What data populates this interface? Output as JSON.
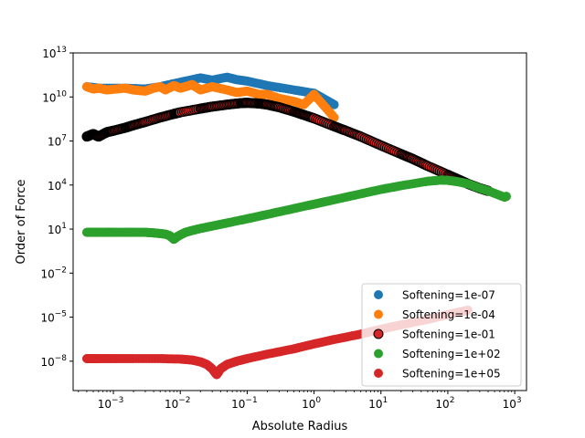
{
  "chart_data": {
    "type": "scatter",
    "title": "",
    "xlabel": "Absolute Radius",
    "ylabel": "Order of Force",
    "xscale": "log",
    "yscale": "log",
    "xlim": [
      0.00025,
      1500
    ],
    "ylim": [
      1e-10,
      10000000000000.0
    ],
    "x_ticks": [
      {
        "value": 0.001,
        "base": "10",
        "exp": "−3"
      },
      {
        "value": 0.01,
        "base": "10",
        "exp": "−2"
      },
      {
        "value": 0.1,
        "base": "10",
        "exp": "−1"
      },
      {
        "value": 1,
        "base": "10",
        "exp": "0"
      },
      {
        "value": 10,
        "base": "10",
        "exp": "1"
      },
      {
        "value": 100,
        "base": "10",
        "exp": "2"
      },
      {
        "value": 1000,
        "base": "10",
        "exp": "3"
      }
    ],
    "y_ticks": [
      {
        "value": 1e-08,
        "base": "10",
        "exp": "−8"
      },
      {
        "value": 1e-05,
        "base": "10",
        "exp": "−5"
      },
      {
        "value": 0.01,
        "base": "10",
        "exp": "−2"
      },
      {
        "value": 10,
        "base": "10",
        "exp": "1"
      },
      {
        "value": 10000,
        "base": "10",
        "exp": "4"
      },
      {
        "value": 10000000.0,
        "base": "10",
        "exp": "7"
      },
      {
        "value": 10000000000.0,
        "base": "10",
        "exp": "10"
      },
      {
        "value": 10000000000000.0,
        "base": "10",
        "exp": "13"
      }
    ],
    "grid": false,
    "legend_position": "lower-right",
    "series": [
      {
        "name": "Softening=1e-07",
        "color": "#1f77b4",
        "edgecolor": "",
        "points": [
          [
            0.0004,
            50000000000.0
          ],
          [
            0.0006,
            40000000000.0
          ],
          [
            0.0015,
            40000000000.0
          ],
          [
            0.003,
            35000000000.0
          ],
          [
            0.005,
            50000000000.0
          ],
          [
            0.008,
            80000000000.0
          ],
          [
            0.012,
            120000000000.0
          ],
          [
            0.02,
            200000000000.0
          ],
          [
            0.03,
            140000000000.0
          ],
          [
            0.05,
            220000000000.0
          ],
          [
            0.07,
            150000000000.0
          ],
          [
            0.1,
            120000000000.0
          ],
          [
            0.2,
            60000000000.0
          ],
          [
            0.5,
            30000000000.0
          ],
          [
            1,
            18000000000.0
          ],
          [
            2,
            3000000000.0
          ]
        ]
      },
      {
        "name": "Softening=1e-04",
        "color": "#ff7f0e",
        "edgecolor": "",
        "points": [
          [
            0.0004,
            50000000000.0
          ],
          [
            0.0005,
            35000000000.0
          ],
          [
            0.0006,
            40000000000.0
          ],
          [
            0.0008,
            30000000000.0
          ],
          [
            0.0015,
            40000000000.0
          ],
          [
            0.002,
            30000000000.0
          ],
          [
            0.003,
            25000000000.0
          ],
          [
            0.004,
            40000000000.0
          ],
          [
            0.005,
            50000000000.0
          ],
          [
            0.006,
            30000000000.0
          ],
          [
            0.008,
            60000000000.0
          ],
          [
            0.01,
            40000000000.0
          ],
          [
            0.012,
            50000000000.0
          ],
          [
            0.015,
            70000000000.0
          ],
          [
            0.02,
            30000000000.0
          ],
          [
            0.03,
            50000000000.0
          ],
          [
            0.05,
            30000000000.0
          ],
          [
            0.07,
            20000000000.0
          ],
          [
            0.1,
            25000000000.0
          ],
          [
            0.15,
            15000000000.0
          ],
          [
            0.2,
            15000000000.0
          ],
          [
            0.3,
            8000000000.0
          ],
          [
            0.5,
            5000000000.0
          ],
          [
            0.7,
            3000000000.0
          ],
          [
            1,
            15000000000.0
          ],
          [
            2,
            400000000.0
          ]
        ]
      },
      {
        "name": "Softening=1e-01",
        "color": "#d62728",
        "edgecolor": "#000000",
        "points": [
          [
            0.0004,
            20000000.0
          ],
          [
            0.0005,
            30000000.0
          ],
          [
            0.0006,
            20000000.0
          ],
          [
            0.0008,
            40000000.0
          ],
          [
            0.001,
            50000000.0
          ],
          [
            0.0015,
            80000000.0
          ],
          [
            0.002,
            120000000.0
          ],
          [
            0.003,
            200000000.0
          ],
          [
            0.005,
            400000000.0
          ],
          [
            0.008,
            700000000.0
          ],
          [
            0.01,
            900000000.0
          ],
          [
            0.02,
            1600000000.0
          ],
          [
            0.03,
            2200000000.0
          ],
          [
            0.05,
            3000000000.0
          ],
          [
            0.08,
            3800000000.0
          ],
          [
            0.1,
            4000000000.0
          ],
          [
            0.15,
            3600000000.0
          ],
          [
            0.2,
            3000000000.0
          ],
          [
            0.3,
            2000000000.0
          ],
          [
            0.5,
            1000000000.0
          ],
          [
            0.7,
            600000000.0
          ],
          [
            1,
            350000000.0
          ],
          [
            2,
            100000000.0
          ],
          [
            3,
            50000000.0
          ],
          [
            5,
            20000000.0
          ],
          [
            10,
            5000000.0
          ],
          [
            20,
            1300000.0
          ],
          [
            30,
            600000.0
          ],
          [
            50,
            200000.0
          ],
          [
            100,
            50000.0
          ],
          [
            150,
            22000.0
          ],
          [
            200,
            12000.0
          ],
          [
            300,
            6000
          ],
          [
            400,
            4000
          ]
        ]
      },
      {
        "name": "Softening=1e+02",
        "color": "#2ca02c",
        "edgecolor": "",
        "points": [
          [
            0.0004,
            6
          ],
          [
            0.0005,
            6
          ],
          [
            0.0006,
            6
          ],
          [
            0.0008,
            6
          ],
          [
            0.001,
            6
          ],
          [
            0.0015,
            6
          ],
          [
            0.002,
            6
          ],
          [
            0.003,
            6
          ],
          [
            0.004,
            5.5
          ],
          [
            0.005,
            5
          ],
          [
            0.006,
            4.5
          ],
          [
            0.007,
            3.5
          ],
          [
            0.008,
            2
          ],
          [
            0.009,
            3
          ],
          [
            0.01,
            4
          ],
          [
            0.012,
            6
          ],
          [
            0.015,
            8
          ],
          [
            0.02,
            11
          ],
          [
            0.03,
            16
          ],
          [
            0.05,
            26
          ],
          [
            0.1,
            50
          ],
          [
            0.2,
            100
          ],
          [
            0.5,
            250
          ],
          [
            1,
            500
          ],
          [
            2,
            1000
          ],
          [
            5,
            2500
          ],
          [
            10,
            5000
          ],
          [
            20,
            9000
          ],
          [
            50,
            18000.0
          ],
          [
            80,
            22000.0
          ],
          [
            100,
            21000.0
          ],
          [
            150,
            16000.0
          ],
          [
            200,
            12000.0
          ],
          [
            300,
            6000
          ],
          [
            400,
            4000
          ],
          [
            700,
            1500
          ],
          [
            750,
            1700
          ]
        ]
      },
      {
        "name": "Softening=1e+05",
        "color": "#d62728",
        "edgecolor": "",
        "points": [
          [
            0.0004,
            1.5e-08
          ],
          [
            0.0005,
            1.5e-08
          ],
          [
            0.0006,
            1.5e-08
          ],
          [
            0.001,
            1.5e-08
          ],
          [
            0.002,
            1.5e-08
          ],
          [
            0.005,
            1.5e-08
          ],
          [
            0.01,
            1.4e-08
          ],
          [
            0.015,
            1.2e-08
          ],
          [
            0.02,
            9e-09
          ],
          [
            0.025,
            6e-09
          ],
          [
            0.03,
            3e-09
          ],
          [
            0.035,
            1.2e-09
          ],
          [
            0.04,
            3e-09
          ],
          [
            0.05,
            6e-09
          ],
          [
            0.07,
            1e-08
          ],
          [
            0.1,
            1.5e-08
          ],
          [
            0.2,
            3e-08
          ],
          [
            0.5,
            7e-08
          ],
          [
            1,
            1.5e-07
          ],
          [
            2,
            3e-07
          ],
          [
            5,
            7e-07
          ],
          [
            10,
            1.5e-06
          ],
          [
            20,
            3e-06
          ],
          [
            50,
            7e-06
          ],
          [
            100,
            1.5e-05
          ],
          [
            200,
            3e-05
          ]
        ]
      }
    ]
  }
}
